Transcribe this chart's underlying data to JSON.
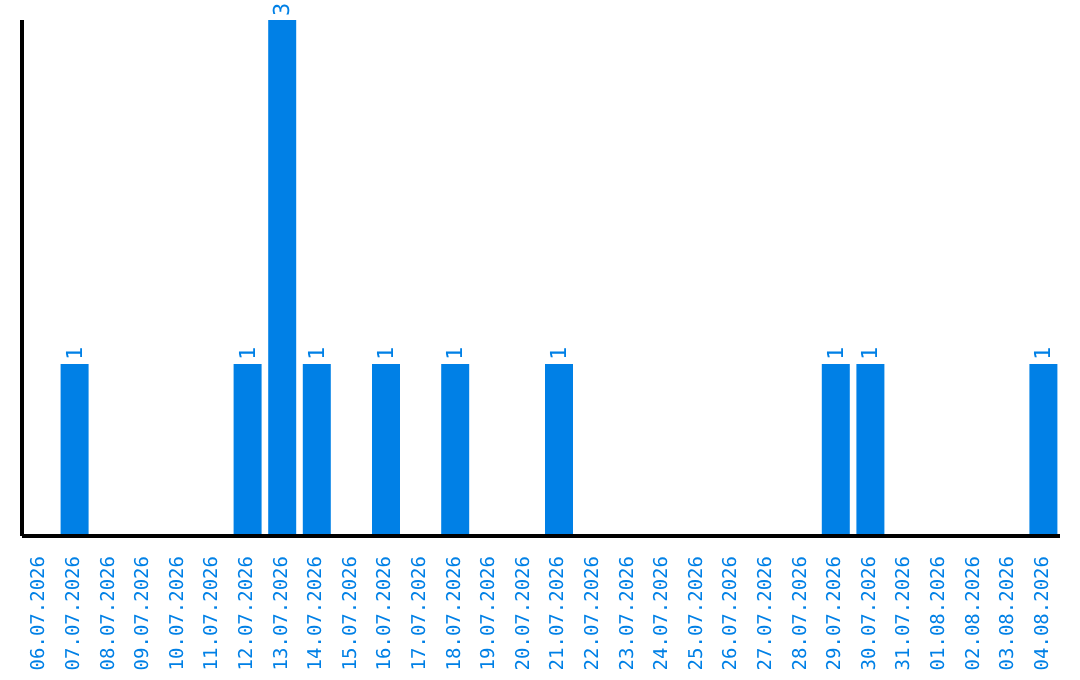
{
  "chart_data": {
    "type": "bar",
    "categories": [
      "06.07.2026",
      "07.07.2026",
      "08.07.2026",
      "09.07.2026",
      "10.07.2026",
      "11.07.2026",
      "12.07.2026",
      "13.07.2026",
      "14.07.2026",
      "15.07.2026",
      "16.07.2026",
      "17.07.2026",
      "18.07.2026",
      "19.07.2026",
      "20.07.2026",
      "21.07.2026",
      "22.07.2026",
      "23.07.2026",
      "24.07.2026",
      "25.07.2026",
      "26.07.2026",
      "27.07.2026",
      "28.07.2026",
      "29.07.2026",
      "30.07.2026",
      "31.07.2026",
      "01.08.2026",
      "02.08.2026",
      "03.08.2026",
      "04.08.2026"
    ],
    "values": [
      0,
      1,
      0,
      0,
      0,
      0,
      1,
      3,
      1,
      0,
      1,
      0,
      1,
      0,
      0,
      1,
      0,
      0,
      0,
      0,
      0,
      0,
      0,
      1,
      1,
      0,
      0,
      0,
      0,
      1
    ],
    "value_labels": [
      null,
      "1",
      null,
      null,
      null,
      null,
      "1",
      "3",
      "1",
      null,
      "1",
      null,
      "1",
      null,
      null,
      "1",
      null,
      null,
      null,
      null,
      null,
      null,
      null,
      "1",
      "1",
      null,
      null,
      null,
      null,
      "1"
    ],
    "color": "#0080e6",
    "grid": false,
    "legend": false,
    "tick_labels": "x"
  }
}
